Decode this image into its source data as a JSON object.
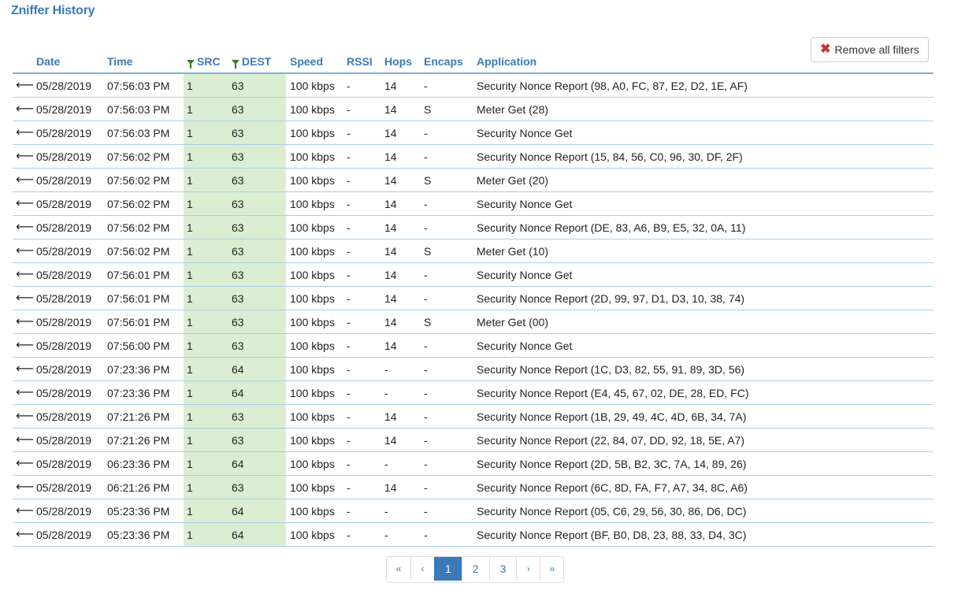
{
  "page": {
    "title": "Zniffer History"
  },
  "toolbar": {
    "remove_filters_label": "Remove all filters"
  },
  "table": {
    "columns": {
      "date": "Date",
      "time": "Time",
      "src": "SRC",
      "dest": "DEST",
      "speed": "Speed",
      "rssi": "RSSI",
      "hops": "Hops",
      "encaps": "Encaps",
      "application": "Application"
    },
    "rows": [
      {
        "dir": "⟵",
        "date": "05/28/2019",
        "time": "07:56:03 PM",
        "src": "1",
        "dest": "63",
        "speed": "100 kbps",
        "rssi": "-",
        "hops": "14",
        "encaps": "-",
        "application": "Security Nonce Report (98, A0, FC, 87, E2, D2, 1E, AF)"
      },
      {
        "dir": "⟵",
        "date": "05/28/2019",
        "time": "07:56:03 PM",
        "src": "1",
        "dest": "63",
        "speed": "100 kbps",
        "rssi": "-",
        "hops": "14",
        "encaps": "S",
        "application": "Meter Get (28)"
      },
      {
        "dir": "⟵",
        "date": "05/28/2019",
        "time": "07:56:03 PM",
        "src": "1",
        "dest": "63",
        "speed": "100 kbps",
        "rssi": "-",
        "hops": "14",
        "encaps": "-",
        "application": "Security Nonce Get"
      },
      {
        "dir": "⟵",
        "date": "05/28/2019",
        "time": "07:56:02 PM",
        "src": "1",
        "dest": "63",
        "speed": "100 kbps",
        "rssi": "-",
        "hops": "14",
        "encaps": "-",
        "application": "Security Nonce Report (15, 84, 56, C0, 96, 30, DF, 2F)"
      },
      {
        "dir": "⟵",
        "date": "05/28/2019",
        "time": "07:56:02 PM",
        "src": "1",
        "dest": "63",
        "speed": "100 kbps",
        "rssi": "-",
        "hops": "14",
        "encaps": "S",
        "application": "Meter Get (20)"
      },
      {
        "dir": "⟵",
        "date": "05/28/2019",
        "time": "07:56:02 PM",
        "src": "1",
        "dest": "63",
        "speed": "100 kbps",
        "rssi": "-",
        "hops": "14",
        "encaps": "-",
        "application": "Security Nonce Get"
      },
      {
        "dir": "⟵",
        "date": "05/28/2019",
        "time": "07:56:02 PM",
        "src": "1",
        "dest": "63",
        "speed": "100 kbps",
        "rssi": "-",
        "hops": "14",
        "encaps": "-",
        "application": "Security Nonce Report (DE, 83, A6, B9, E5, 32, 0A, 11)"
      },
      {
        "dir": "⟵",
        "date": "05/28/2019",
        "time": "07:56:02 PM",
        "src": "1",
        "dest": "63",
        "speed": "100 kbps",
        "rssi": "-",
        "hops": "14",
        "encaps": "S",
        "application": "Meter Get (10)"
      },
      {
        "dir": "⟵",
        "date": "05/28/2019",
        "time": "07:56:01 PM",
        "src": "1",
        "dest": "63",
        "speed": "100 kbps",
        "rssi": "-",
        "hops": "14",
        "encaps": "-",
        "application": "Security Nonce Get"
      },
      {
        "dir": "⟵",
        "date": "05/28/2019",
        "time": "07:56:01 PM",
        "src": "1",
        "dest": "63",
        "speed": "100 kbps",
        "rssi": "-",
        "hops": "14",
        "encaps": "-",
        "application": "Security Nonce Report (2D, 99, 97, D1, D3, 10, 38, 74)"
      },
      {
        "dir": "⟵",
        "date": "05/28/2019",
        "time": "07:56:01 PM",
        "src": "1",
        "dest": "63",
        "speed": "100 kbps",
        "rssi": "-",
        "hops": "14",
        "encaps": "S",
        "application": "Meter Get (00)"
      },
      {
        "dir": "⟵",
        "date": "05/28/2019",
        "time": "07:56:00 PM",
        "src": "1",
        "dest": "63",
        "speed": "100 kbps",
        "rssi": "-",
        "hops": "14",
        "encaps": "-",
        "application": "Security Nonce Get"
      },
      {
        "dir": "⟵",
        "date": "05/28/2019",
        "time": "07:23:36 PM",
        "src": "1",
        "dest": "64",
        "speed": "100 kbps",
        "rssi": "-",
        "hops": "-",
        "encaps": "-",
        "application": "Security Nonce Report (1C, D3, 82, 55, 91, 89, 3D, 56)"
      },
      {
        "dir": "⟵",
        "date": "05/28/2019",
        "time": "07:23:36 PM",
        "src": "1",
        "dest": "64",
        "speed": "100 kbps",
        "rssi": "-",
        "hops": "-",
        "encaps": "-",
        "application": "Security Nonce Report (E4, 45, 67, 02, DE, 28, ED, FC)"
      },
      {
        "dir": "⟵",
        "date": "05/28/2019",
        "time": "07:21:26 PM",
        "src": "1",
        "dest": "63",
        "speed": "100 kbps",
        "rssi": "-",
        "hops": "14",
        "encaps": "-",
        "application": "Security Nonce Report (1B, 29, 49, 4C, 4D, 6B, 34, 7A)"
      },
      {
        "dir": "⟵",
        "date": "05/28/2019",
        "time": "07:21:26 PM",
        "src": "1",
        "dest": "63",
        "speed": "100 kbps",
        "rssi": "-",
        "hops": "14",
        "encaps": "-",
        "application": "Security Nonce Report (22, 84, 07, DD, 92, 18, 5E, A7)"
      },
      {
        "dir": "⟵",
        "date": "05/28/2019",
        "time": "06:23:36 PM",
        "src": "1",
        "dest": "64",
        "speed": "100 kbps",
        "rssi": "-",
        "hops": "-",
        "encaps": "-",
        "application": "Security Nonce Report (2D, 5B, B2, 3C, 7A, 14, 89, 26)"
      },
      {
        "dir": "⟵",
        "date": "05/28/2019",
        "time": "06:21:26 PM",
        "src": "1",
        "dest": "63",
        "speed": "100 kbps",
        "rssi": "-",
        "hops": "14",
        "encaps": "-",
        "application": "Security Nonce Report (6C, 8D, FA, F7, A7, 34, 8C, A6)"
      },
      {
        "dir": "⟵",
        "date": "05/28/2019",
        "time": "05:23:36 PM",
        "src": "1",
        "dest": "64",
        "speed": "100 kbps",
        "rssi": "-",
        "hops": "-",
        "encaps": "-",
        "application": "Security Nonce Report (05, C6, 29, 56, 30, 86, D6, DC)"
      },
      {
        "dir": "⟵",
        "date": "05/28/2019",
        "time": "05:23:36 PM",
        "src": "1",
        "dest": "64",
        "speed": "100 kbps",
        "rssi": "-",
        "hops": "-",
        "encaps": "-",
        "application": "Security Nonce Report (BF, B0, D8, 23, 88, 33, D4, 3C)"
      }
    ]
  },
  "pagination": {
    "first": "«",
    "prev": "‹",
    "pages": [
      "1",
      "2",
      "3"
    ],
    "current": "1",
    "next": "›",
    "last": "»"
  },
  "colors": {
    "accent": "#3a7ab8",
    "filtered_column_bg": "#dbeed2",
    "filter_icon": "#3b7a2a",
    "remove_icon": "#c9302c"
  },
  "icons": {
    "direction": "arrow-left-icon",
    "filter": "filter-icon",
    "remove": "close-icon"
  }
}
